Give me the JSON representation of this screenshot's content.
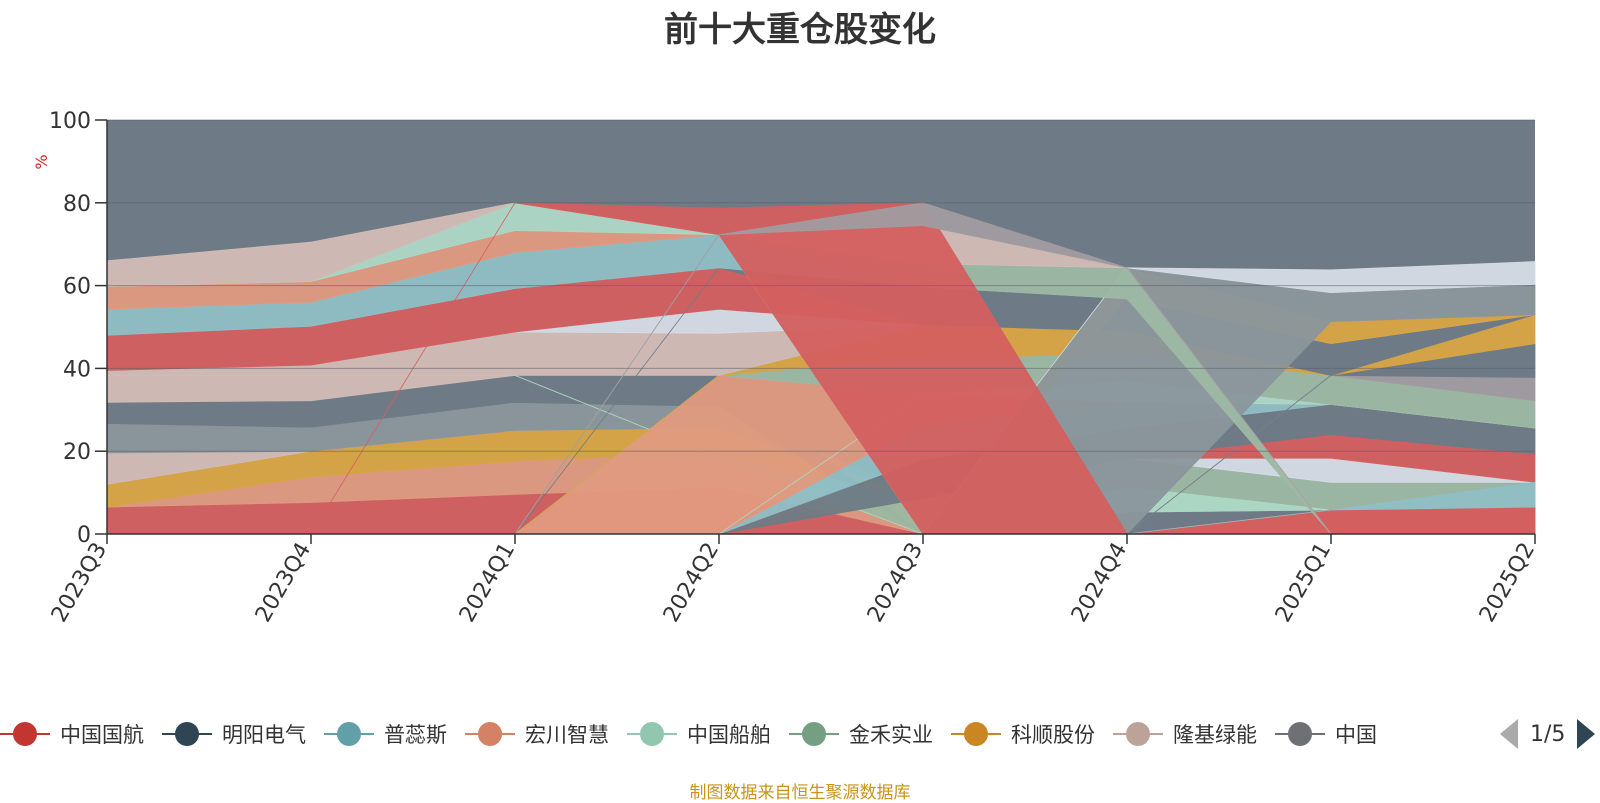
{
  "chart_data": {
    "type": "area",
    "title": "前十大重仓股变化",
    "ylabel": "%",
    "xlabel": "",
    "ylim": [
      0,
      100
    ],
    "yticks": [
      0,
      20,
      40,
      60,
      80,
      100
    ],
    "categories": [
      "2023Q3",
      "2023Q4",
      "2024Q1",
      "2024Q2",
      "2024Q3",
      "2024Q4",
      "2025Q1",
      "2025Q2"
    ],
    "grid": true,
    "legend_position": "bottom",
    "bands": [
      {
        "color": "#d45f5f",
        "lower": [
          0,
          0,
          0,
          0,
          0,
          0,
          0,
          0
        ],
        "upper": [
          6.5,
          7.6,
          9.6,
          11.3,
          0,
          0,
          5.8,
          6.5
        ]
      },
      {
        "color": "#e09a80",
        "lower": [
          6.5,
          7.6,
          9.6,
          11.3,
          0,
          0,
          5.8,
          6.5
        ],
        "upper": [
          6.5,
          13.8,
          17.6,
          19.6,
          0,
          0,
          5.8,
          6.5
        ]
      },
      {
        "color": "#d9a443",
        "lower": [
          6.5,
          13.8,
          17.6,
          19.6,
          0,
          0,
          5.8,
          6.5
        ],
        "upper": [
          12,
          20,
          25,
          25.6,
          8.6,
          0,
          5.8,
          6.5
        ]
      },
      {
        "color": "#d2bcb6",
        "lower": [
          12,
          20,
          25,
          25.6,
          8.6,
          0,
          5.8,
          6.5
        ],
        "upper": [
          19.6,
          20,
          25,
          25.6,
          8.6,
          0,
          5.8,
          6.5
        ]
      },
      {
        "color": "#8a969c",
        "lower": [
          19.6,
          20,
          25,
          25.6,
          8.6,
          0,
          5.8,
          6.5
        ],
        "upper": [
          26.7,
          25.8,
          31.8,
          30.8,
          8.6,
          0,
          5.8,
          6.5
        ]
      },
      {
        "color": "#6e7b86",
        "lower": [
          26.7,
          25.8,
          31.8,
          30.8,
          0,
          0,
          5.8,
          6.5
        ],
        "upper": [
          31.8,
          32.2,
          38.3,
          38.3,
          0,
          5.3,
          5.8,
          6.5
        ]
      },
      {
        "color": "#9db8a4",
        "lower": [
          38.3,
          38.3,
          38.3,
          18.5,
          0,
          5.3,
          5.8,
          6.5
        ],
        "upper": [
          38.3,
          38.3,
          38.3,
          18.5,
          8.6,
          18.3,
          12.5,
          12.5
        ]
      },
      {
        "color": "#add8c6",
        "lower": [
          38.3,
          38.3,
          38.3,
          18.5,
          0,
          5.3,
          5.8,
          6.5
        ],
        "upper": [
          38.3,
          38.3,
          38.3,
          18.5,
          0,
          11.3,
          5.8,
          6.5
        ]
      },
      {
        "color": "#d6dce5",
        "lower": [
          0,
          0,
          0,
          0,
          0,
          18.3,
          12.5,
          12.5
        ],
        "upper": [
          0,
          0,
          0,
          0,
          0,
          18.3,
          18.3,
          12.5
        ]
      },
      {
        "color": "#d45f5f",
        "lower": [
          0,
          0,
          0,
          0,
          0,
          0,
          5.8,
          6.5
        ],
        "upper": [
          0,
          0,
          0,
          0,
          0,
          0,
          5.8,
          6.5
        ]
      },
      {
        "color": "#d45f5f",
        "lower": [
          0,
          0,
          0,
          0,
          0,
          18.3,
          18.3,
          12.5
        ],
        "upper": [
          0,
          0,
          0,
          0,
          0,
          18.3,
          24,
          19.3
        ]
      },
      {
        "color": "#d45f5f",
        "lower": [
          0,
          0,
          0,
          0,
          0,
          0,
          0,
          0
        ],
        "upper": [
          0,
          0,
          0,
          0,
          0,
          0,
          5.8,
          6.5
        ]
      },
      {
        "color": "#8fbfc5",
        "lower": [
          0,
          0,
          0,
          0,
          0,
          0,
          5.8,
          6.5
        ],
        "upper": [
          0,
          0,
          0,
          0,
          0,
          0,
          5.8,
          12.5
        ]
      },
      {
        "color": "#6e7b86",
        "lower": [
          0,
          0,
          0,
          0,
          8.6,
          18.3,
          24,
          19.3
        ],
        "upper": [
          0,
          0,
          0,
          0,
          18,
          25.6,
          31.3,
          25.6
        ]
      },
      {
        "color": "#8fbfc5",
        "lower": [
          0,
          0,
          0,
          0,
          18,
          25.6,
          31.3,
          25.6
        ],
        "upper": [
          0,
          0,
          0,
          0,
          26.3,
          31.8,
          31.3,
          25.6
        ]
      },
      {
        "color": "#e09a80",
        "lower": [
          0,
          0,
          0,
          0,
          26.3,
          31.8,
          31.3,
          25.6
        ],
        "upper": [
          0,
          0,
          0,
          38.3,
          33.8,
          31.8,
          31.3,
          25.6
        ]
      },
      {
        "color": "#add8c6",
        "lower": [
          0,
          0,
          0,
          0,
          33.8,
          31.8,
          31.3,
          25.6
        ],
        "upper": [
          0,
          0,
          0,
          0,
          33.8,
          37,
          31.3,
          25.6
        ]
      },
      {
        "color": "#9db8a4",
        "lower": [
          0,
          0,
          0,
          38.3,
          33.8,
          37,
          31.3,
          25.6
        ],
        "upper": [
          0,
          0,
          0,
          38.3,
          42.5,
          43.5,
          38.3,
          32.2
        ]
      },
      {
        "color": "#a09ca0",
        "lower": [
          0,
          0,
          0,
          0,
          0,
          0,
          38.3,
          32.2
        ],
        "upper": [
          0,
          0,
          0,
          0,
          0,
          0,
          38.3,
          37.8
        ]
      },
      {
        "color": "#6e7b86",
        "lower": [
          0,
          0,
          0,
          0,
          0,
          0,
          38.3,
          37.8
        ],
        "upper": [
          0,
          0,
          0,
          0,
          0,
          0,
          38.3,
          46
        ]
      },
      {
        "color": "#d9a443",
        "lower": [
          0,
          0,
          0,
          38.3,
          42.5,
          43.5,
          38.3,
          46
        ],
        "upper": [
          0,
          0,
          0,
          38.3,
          50.5,
          49,
          38.3,
          53
        ]
      },
      {
        "color": "#d2bcb6",
        "lower": [
          31.8,
          32.2,
          38.3,
          38.3,
          50.5,
          0,
          0,
          0
        ],
        "upper": [
          39.5,
          40.8,
          48.8,
          48.5,
          50.5,
          0,
          0,
          0
        ]
      },
      {
        "color": "#d6dce5",
        "lower": [
          39.5,
          40.8,
          48.8,
          48.5,
          50.5,
          0,
          0,
          0
        ],
        "upper": [
          39.5,
          40.8,
          48.8,
          54.3,
          50.5,
          0,
          0,
          0
        ]
      },
      {
        "color": "#d45f5f",
        "lower": [
          39.5,
          40.8,
          48.8,
          54.3,
          50.5,
          0,
          0,
          0
        ],
        "upper": [
          48,
          50.2,
          59.3,
          64.3,
          50.5,
          0,
          0,
          0
        ]
      },
      {
        "color": "#6e7b86",
        "lower": [
          0,
          0,
          0,
          64.3,
          50.5,
          49,
          38.3,
          53
        ],
        "upper": [
          0,
          0,
          0,
          64.3,
          59.7,
          56.8,
          46,
          53
        ]
      },
      {
        "color": "#8fbfc5",
        "lower": [
          48,
          50.2,
          59.3,
          64.3,
          59.7,
          56.8,
          46,
          53
        ],
        "upper": [
          54.3,
          56,
          68,
          72.3,
          59.7,
          56.8,
          46,
          53
        ]
      },
      {
        "color": "#d9a443",
        "lower": [
          0,
          0,
          0,
          0,
          0,
          56.8,
          46,
          53
        ],
        "upper": [
          0,
          0,
          0,
          0,
          0,
          64.3,
          51.3,
          53
        ]
      },
      {
        "color": "#8a969c",
        "lower": [
          0,
          0,
          0,
          0,
          0,
          0,
          51.3,
          53
        ],
        "upper": [
          0,
          0,
          0,
          0,
          0,
          64.3,
          58.3,
          60.3
        ]
      },
      {
        "color": "#d6dce5",
        "lower": [
          0,
          0,
          0,
          0,
          0,
          64.3,
          58.3,
          60.3
        ],
        "upper": [
          0,
          0,
          0,
          0,
          0,
          64.3,
          63.8,
          65.8
        ]
      },
      {
        "color": "#e09a80",
        "lower": [
          54.3,
          56,
          68,
          72.3,
          0,
          0,
          0,
          0
        ],
        "upper": [
          59.8,
          61,
          73.3,
          72.3,
          0,
          0,
          0,
          0
        ]
      },
      {
        "color": "#9db8a4",
        "lower": [
          0,
          0,
          0,
          72.3,
          59.7,
          56.8,
          0,
          0
        ],
        "upper": [
          0,
          0,
          0,
          72.3,
          65.3,
          64.3,
          0,
          0
        ]
      },
      {
        "color": "#add8c6",
        "lower": [
          59.8,
          61,
          73.3,
          72.3,
          0,
          0,
          0,
          0
        ],
        "upper": [
          59.8,
          61,
          80,
          72.3,
          0,
          0,
          0,
          0
        ]
      },
      {
        "color": "#d2bcb6",
        "lower": [
          59.8,
          61,
          80,
          72.3,
          65.3,
          64.3,
          0,
          0
        ],
        "upper": [
          66,
          70.5,
          80,
          72.3,
          74.5,
          64.3,
          0,
          0
        ]
      },
      {
        "color": "#d45f5f",
        "lower": [
          0,
          0,
          80,
          72.3,
          0,
          0,
          0,
          0
        ],
        "upper": [
          0,
          0,
          80,
          78.7,
          80,
          0,
          0,
          0
        ]
      },
      {
        "color": "#a09ca0",
        "lower": [
          0,
          0,
          0,
          72.3,
          74.5,
          64.3,
          0,
          0
        ],
        "upper": [
          0,
          0,
          0,
          72.3,
          80,
          64.3,
          0,
          0
        ]
      }
    ]
  },
  "legend": {
    "items": [
      {
        "label": "中国国航",
        "color": "#c23531"
      },
      {
        "label": "明阳电气",
        "color": "#2f4554"
      },
      {
        "label": "普蕊斯",
        "color": "#61a0a8"
      },
      {
        "label": "宏川智慧",
        "color": "#d48265"
      },
      {
        "label": "中国船舶",
        "color": "#91c7ae"
      },
      {
        "label": "金禾实业",
        "color": "#749f83"
      },
      {
        "label": "科顺股份",
        "color": "#ca8622"
      },
      {
        "label": "隆基绿能",
        "color": "#bda29a"
      },
      {
        "label": "中国",
        "color": "#6e7074"
      }
    ],
    "page_info": "1/5"
  },
  "source_note": "制图数据来自恒生聚源数据库",
  "colors": {
    "background_band": "#6e7b86",
    "axis": "#333333",
    "ylabel": "#e02020"
  }
}
